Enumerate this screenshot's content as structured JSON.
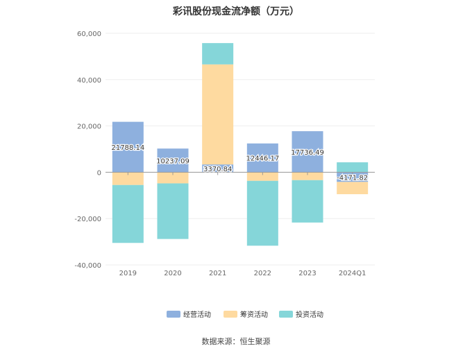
{
  "title": "彩讯股份现金流净额（万元）",
  "source": "数据来源：恒生聚源",
  "colors": {
    "operating": "#8eb0de",
    "financing": "#fedaa0",
    "investing": "#85d6d9",
    "axis": "#999999",
    "grid": "#eeeeee",
    "tick_text": "#666666"
  },
  "chart_data": {
    "type": "bar",
    "stacked": true,
    "categories": [
      "2019",
      "2020",
      "2021",
      "2022",
      "2023",
      "2024Q1"
    ],
    "series": [
      {
        "name": "经营活动",
        "color_key": "operating",
        "values": [
          21788.14,
          10237.09,
          3370.84,
          12446.17,
          17736.49,
          -4171.82
        ]
      },
      {
        "name": "筹资活动",
        "color_key": "financing",
        "values": [
          -5500,
          -4800,
          43200,
          -3700,
          -3400,
          -5300
        ]
      },
      {
        "name": "投资活动",
        "color_key": "investing",
        "values": [
          -25000,
          -24000,
          9200,
          -28000,
          -18300,
          4300
        ]
      }
    ],
    "data_labels": [
      "21788.14",
      "10237.09",
      "3370.84",
      "12446.17",
      "17736.49",
      "-4171.82"
    ],
    "y_ticks": [
      "60,000",
      "40,000",
      "20,000",
      "0",
      "-20,000",
      "-40,000"
    ],
    "ylim": [
      -40000,
      60000
    ],
    "grid": true,
    "legend_position": "bottom-center"
  }
}
